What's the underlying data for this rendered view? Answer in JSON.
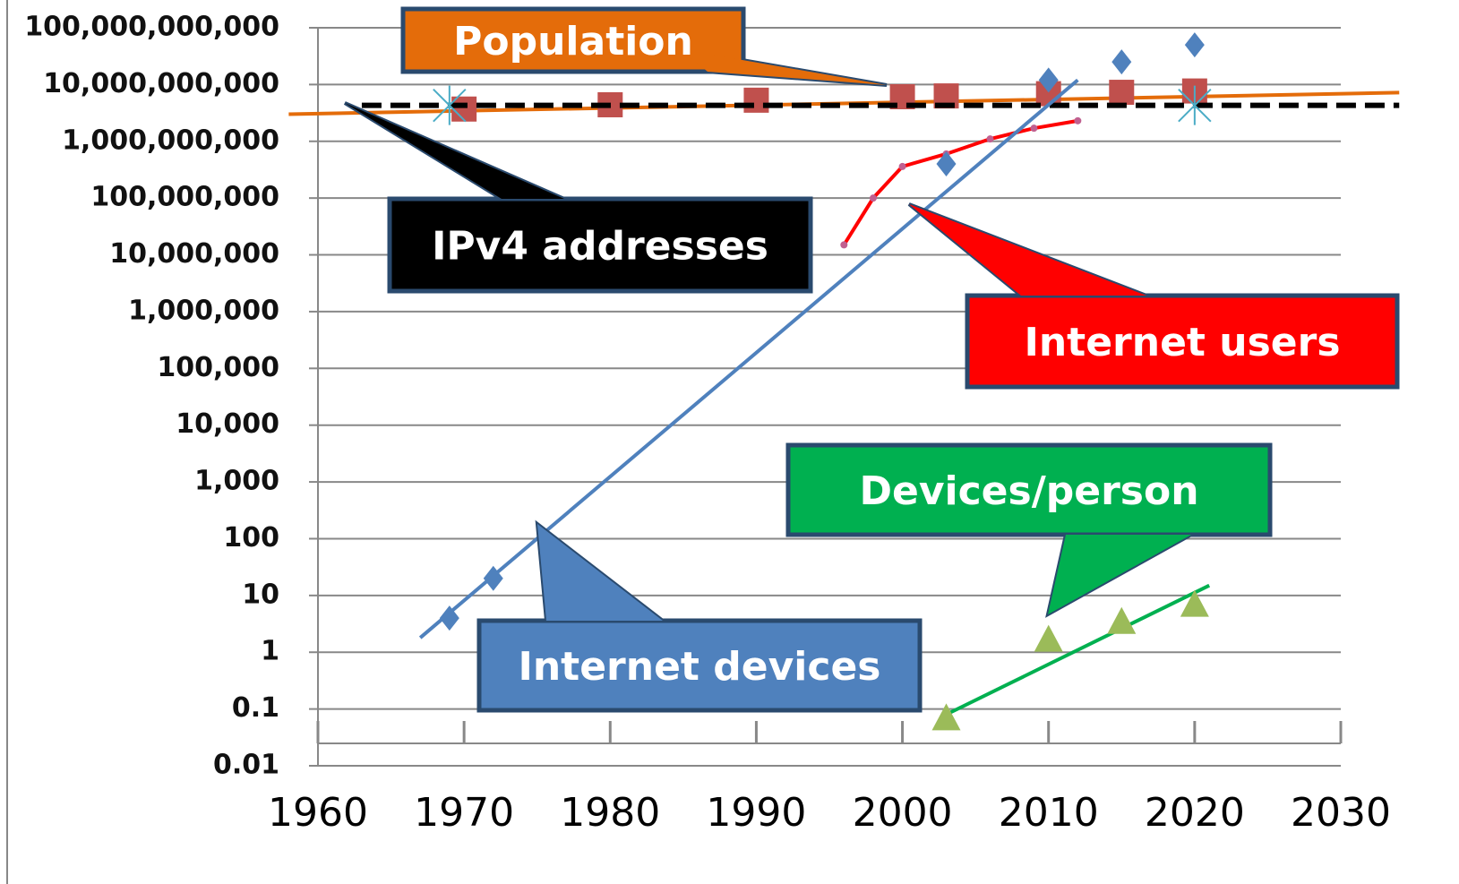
{
  "chart_data": {
    "type": "scatter",
    "log_y": true,
    "grid": true,
    "xlim": [
      1960,
      2030
    ],
    "xticks": [
      1960,
      1970,
      1980,
      1990,
      2000,
      2010,
      2020,
      2030
    ],
    "ylim": [
      0.01,
      100000000000
    ],
    "yticks": [
      0.01,
      0.1,
      1,
      10,
      100,
      {
        "value": 1000,
        "label": "1,000"
      },
      {
        "value": 10000,
        "label": "10,000"
      },
      {
        "value": 100000,
        "label": "100,000"
      },
      {
        "value": 1000000,
        "label": "1,000,000"
      },
      {
        "value": 10000000,
        "label": "10,000,000"
      },
      {
        "value": 100000000,
        "label": "100,000,000"
      },
      {
        "value": 1000000000,
        "label": "1,000,000,000"
      },
      {
        "value": 10000000000,
        "label": "10,000,000,000"
      },
      {
        "value": 100000000000,
        "label": "100,000,000,000"
      }
    ],
    "series": [
      {
        "name": "Population",
        "color": "#c0504d",
        "marker": "square",
        "x": [
          1970,
          1980,
          1990,
          2000,
          2003,
          2010,
          2015,
          2020
        ],
        "values": [
          3700000000,
          4400000000,
          5300000000,
          6100000000,
          6300000000,
          6900000000,
          7300000000,
          7700000000
        ],
        "trend": {
          "color": "#e46c0a",
          "x": [
            1958,
            2034
          ],
          "values": [
            3000000000,
            7200000000
          ]
        }
      },
      {
        "name": "IPv4 addresses",
        "color": "#4bacc6",
        "marker": "star",
        "x": [
          1969,
          2020
        ],
        "values": [
          4294967296,
          4294967296
        ],
        "trend": {
          "color": "#000000",
          "dashed": true,
          "x": [
            1963,
            2034
          ],
          "values": [
            4294967296,
            4294967296
          ]
        }
      },
      {
        "name": "Internet users",
        "color": "#e8355a",
        "marker": "dot",
        "x": [
          1996,
          1998,
          2000,
          2003,
          2006,
          2009,
          2012
        ],
        "values": [
          15000000,
          100000000,
          360000000,
          600000000,
          1100000000,
          1700000000,
          2300000000
        ],
        "trend": {
          "color": "#ff0000",
          "x": [
            1996,
            1998,
            2000,
            2003,
            2006,
            2009,
            2012
          ],
          "values": [
            15000000,
            100000000,
            360000000,
            600000000,
            1100000000,
            1700000000,
            2300000000
          ]
        }
      },
      {
        "name": "Devices/person",
        "color": "#9bbb59",
        "marker": "triangle",
        "x": [
          2003,
          2010,
          2015,
          2020
        ],
        "values": [
          0.07,
          1.7,
          3.5,
          7
        ],
        "trend": {
          "color": "#00b050",
          "x": [
            2003,
            2021
          ],
          "values": [
            0.08,
            15
          ]
        }
      },
      {
        "name": "Internet devices",
        "color": "#4f81bd",
        "marker": "diamond",
        "x": [
          1969,
          1972,
          2003,
          2010,
          2015,
          2020
        ],
        "values": [
          4,
          20,
          400000000,
          12000000000,
          25000000000,
          50000000000
        ],
        "trend": {
          "color": "#4f81bd",
          "x": [
            1967,
            2012
          ],
          "values": [
            1.8,
            12000000000
          ]
        }
      }
    ],
    "annotations": [
      {
        "text": "Population",
        "color": "#e46c0a"
      },
      {
        "text": "IPv4 addresses",
        "color": "#000000"
      },
      {
        "text": "Internet users",
        "color": "#ff0000"
      },
      {
        "text": "Devices/person",
        "color": "#00b050"
      },
      {
        "text": "Internet devices",
        "color": "#4f81bd"
      }
    ]
  }
}
